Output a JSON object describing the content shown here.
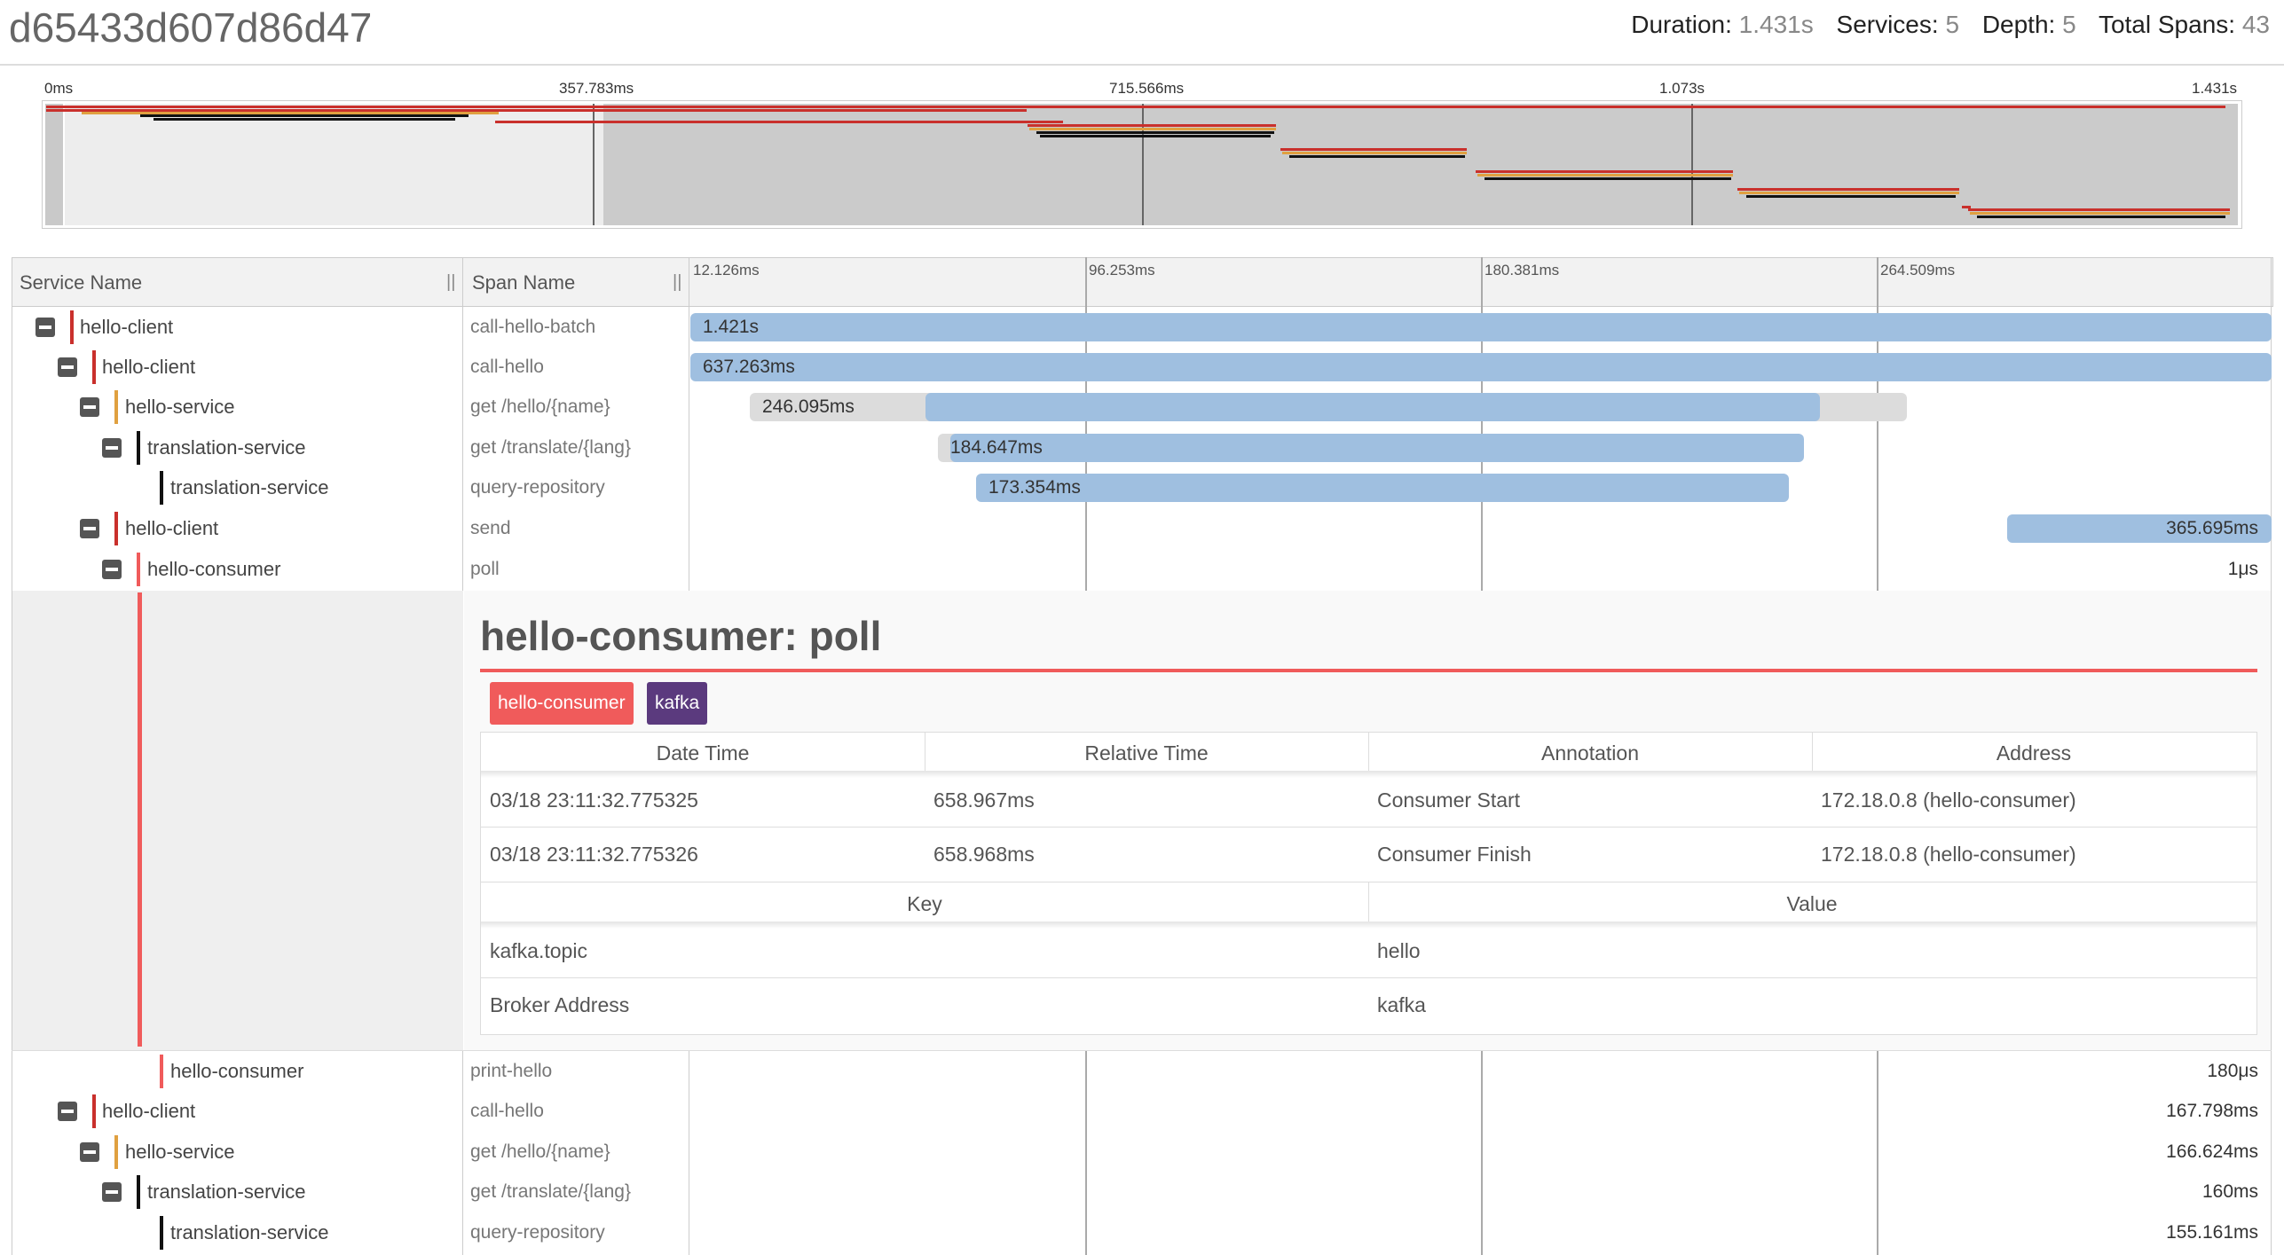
{
  "header": {
    "trace_id": "d65433d607d86d47",
    "duration_label": "Duration:",
    "duration": "1.431s",
    "services_label": "Services:",
    "services": "5",
    "depth_label": "Depth:",
    "depth": "5",
    "total_spans_label": "Total Spans:",
    "total_spans": "43"
  },
  "minimap": {
    "ticks": [
      "0ms",
      "357.783ms",
      "715.566ms",
      "1.073s",
      "1.431s"
    ]
  },
  "table": {
    "service_header": "Service Name",
    "span_header": "Span Name",
    "grip": "||",
    "timeline_ticks": [
      "12.126ms",
      "96.253ms",
      "180.381ms",
      "264.509ms"
    ]
  },
  "rows": [
    {
      "service": "hello-client",
      "span": "call-hello-batch",
      "duration": "1.421s",
      "color": "#c9302c"
    },
    {
      "service": "hello-client",
      "span": "call-hello",
      "duration": "637.263ms",
      "color": "#c9302c"
    },
    {
      "service": "hello-service",
      "span": "get /hello/{name}",
      "duration": "246.095ms",
      "color": "#e0a040"
    },
    {
      "service": "translation-service",
      "span": "get /translate/{lang}",
      "duration": "184.647ms",
      "color": "#111111"
    },
    {
      "service": "translation-service",
      "span": "query-repository",
      "duration": "173.354ms",
      "color": "#111111"
    },
    {
      "service": "hello-client",
      "span": "send",
      "duration": "365.695ms",
      "color": "#c9302c"
    },
    {
      "service": "hello-consumer",
      "span": "poll",
      "duration": "1μs",
      "color": "#f05b5b"
    },
    {
      "service": "hello-consumer",
      "span": "print-hello",
      "duration": "180μs",
      "color": "#f05b5b"
    },
    {
      "service": "hello-client",
      "span": "call-hello",
      "duration": "167.798ms",
      "color": "#c9302c"
    },
    {
      "service": "hello-service",
      "span": "get /hello/{name}",
      "duration": "166.624ms",
      "color": "#e0a040"
    },
    {
      "service": "translation-service",
      "span": "get /translate/{lang}",
      "duration": "160ms",
      "color": "#111111"
    },
    {
      "service": "translation-service",
      "span": "query-repository",
      "duration": "155.161ms",
      "color": "#111111"
    }
  ],
  "detail": {
    "title": "hello-consumer: poll",
    "badges": [
      {
        "label": "hello-consumer",
        "color": "#f05b5b"
      },
      {
        "label": "kafka",
        "color": "#5b3a7e"
      }
    ],
    "annotation_headers": [
      "Date Time",
      "Relative Time",
      "Annotation",
      "Address"
    ],
    "annotations": [
      [
        "03/18 23:11:32.775325",
        "658.967ms",
        "Consumer Start",
        "172.18.0.8 (hello-consumer)"
      ],
      [
        "03/18 23:11:32.775326",
        "658.968ms",
        "Consumer Finish",
        "172.18.0.8 (hello-consumer)"
      ]
    ],
    "tag_headers": [
      "Key",
      "Value"
    ],
    "tags": [
      [
        "kafka.topic",
        "hello"
      ],
      [
        "Broker Address",
        "kafka"
      ]
    ]
  }
}
